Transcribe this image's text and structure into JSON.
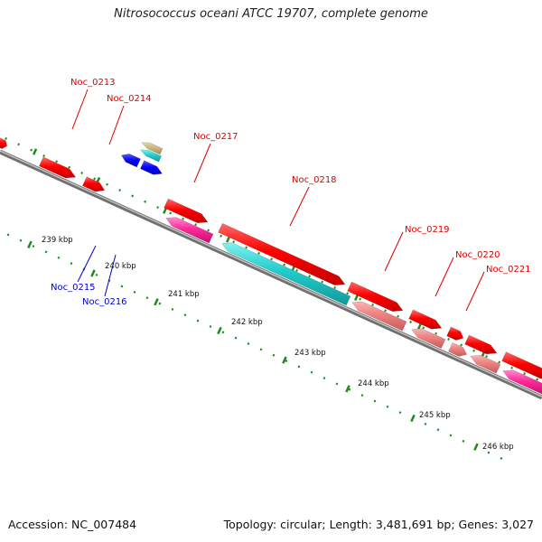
{
  "title": "Nitrosococcus oceani ATCC 19707, complete genome",
  "footer": {
    "accession": "Accession: NC_007484",
    "topology": "Topology: circular; Length: 3,481,691 bp; Genes: 3,027"
  },
  "colors": {
    "backbone": "#8c8c8c",
    "tick": "#1a8c1a",
    "gene_red": "#ff0000",
    "gene_magenta": "#ff2a9a",
    "gene_cyan": "#22cccc",
    "gene_salmon": "#ee8080",
    "gene_blue": "#0000ff",
    "gene_tan": "#c8b478",
    "label_red": "#dd0000",
    "label_blue": "#0000cc"
  },
  "ticks": [
    "239 kbp",
    "240 kbp",
    "241 kbp",
    "242 kbp",
    "243 kbp",
    "244 kbp",
    "245 kbp",
    "246 kbp"
  ],
  "gene_labels": [
    {
      "name": "Noc_0213",
      "color": "red"
    },
    {
      "name": "Noc_0214",
      "color": "red"
    },
    {
      "name": "Noc_0217",
      "color": "red"
    },
    {
      "name": "Noc_0218",
      "color": "red"
    },
    {
      "name": "Noc_0219",
      "color": "red"
    },
    {
      "name": "Noc_0220",
      "color": "red"
    },
    {
      "name": "Noc_0221",
      "color": "red"
    },
    {
      "name": "Noc_0215",
      "color": "blue"
    },
    {
      "name": "Noc_0216",
      "color": "blue"
    }
  ]
}
